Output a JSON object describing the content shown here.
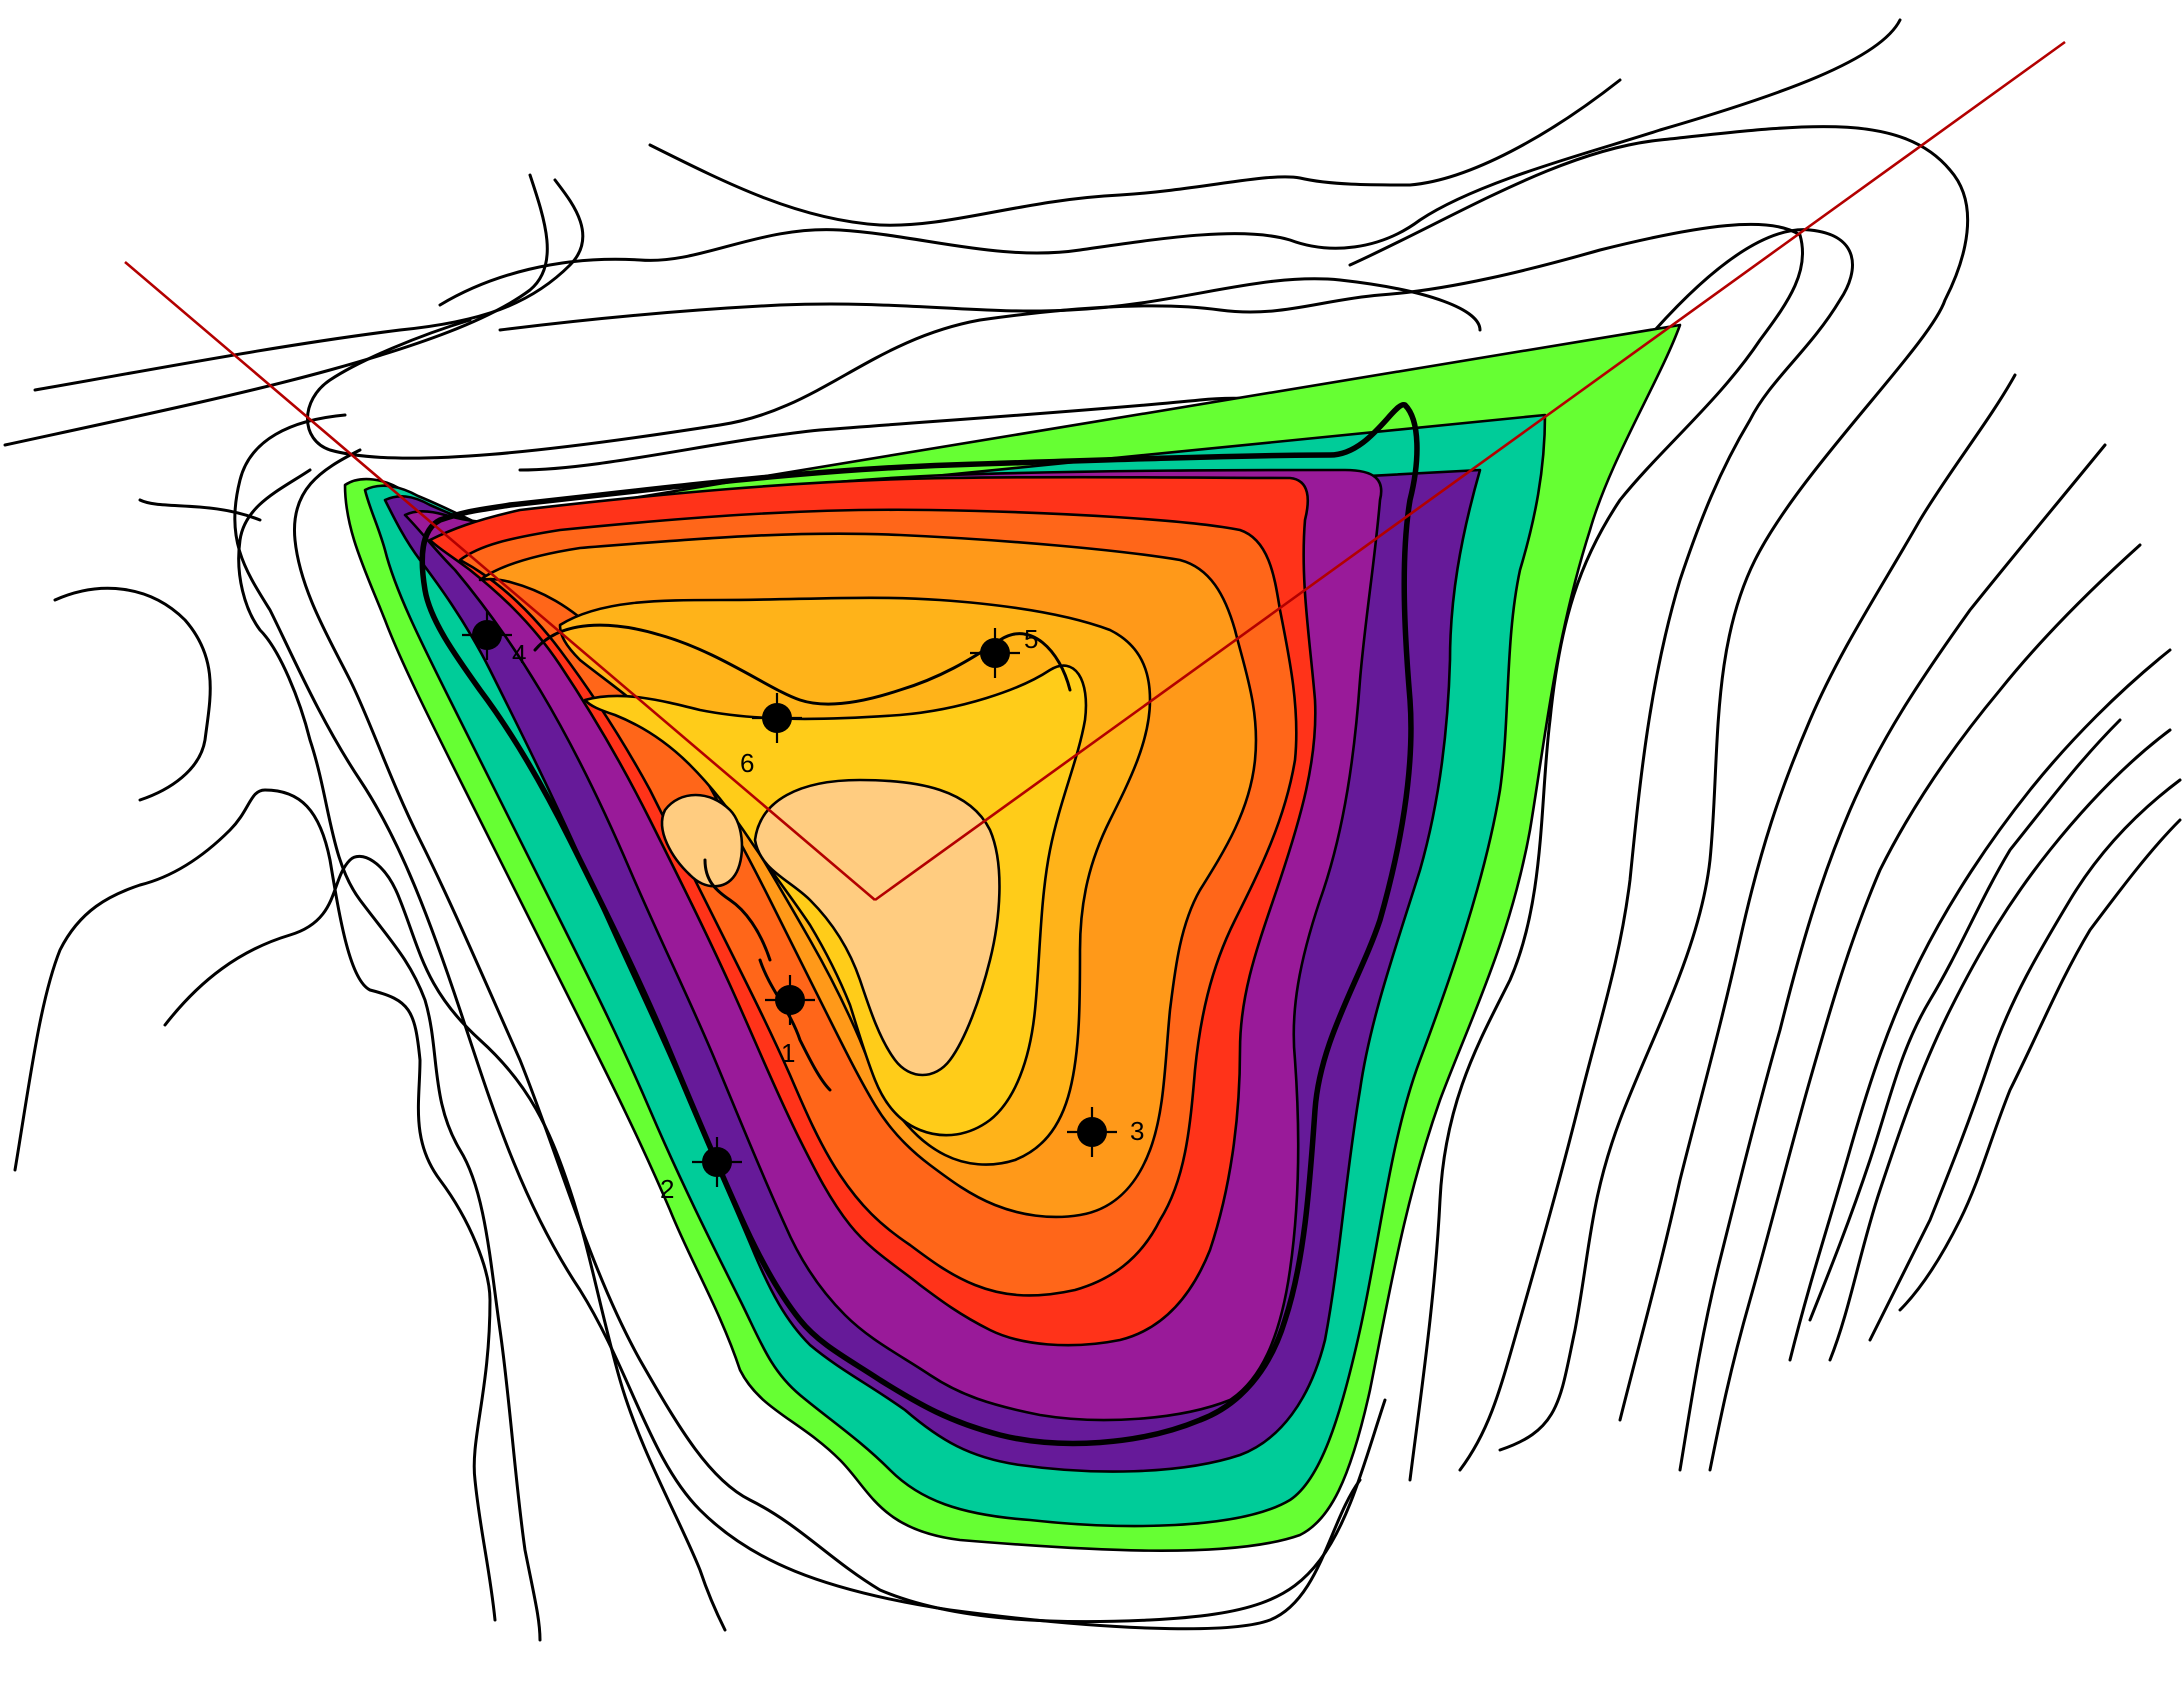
{
  "map": {
    "wells": [
      {
        "id": "1",
        "label": "1"
      },
      {
        "id": "2",
        "label": "2"
      },
      {
        "id": "3",
        "label": "3"
      },
      {
        "id": "4",
        "label": "4"
      },
      {
        "id": "5",
        "label": "5"
      },
      {
        "id": "6",
        "label": "6"
      }
    ],
    "zone_colors": [
      "#66ff33",
      "#00cc99",
      "#661a99",
      "#991a99",
      "#ff3319",
      "#ff6619",
      "#ff9919",
      "#ffb319",
      "#ffcc19",
      "#ffcc80"
    ],
    "ray_color": "#b30000",
    "line_color": "#000000",
    "well_symbol": "filled-circle-with-crosshair"
  }
}
